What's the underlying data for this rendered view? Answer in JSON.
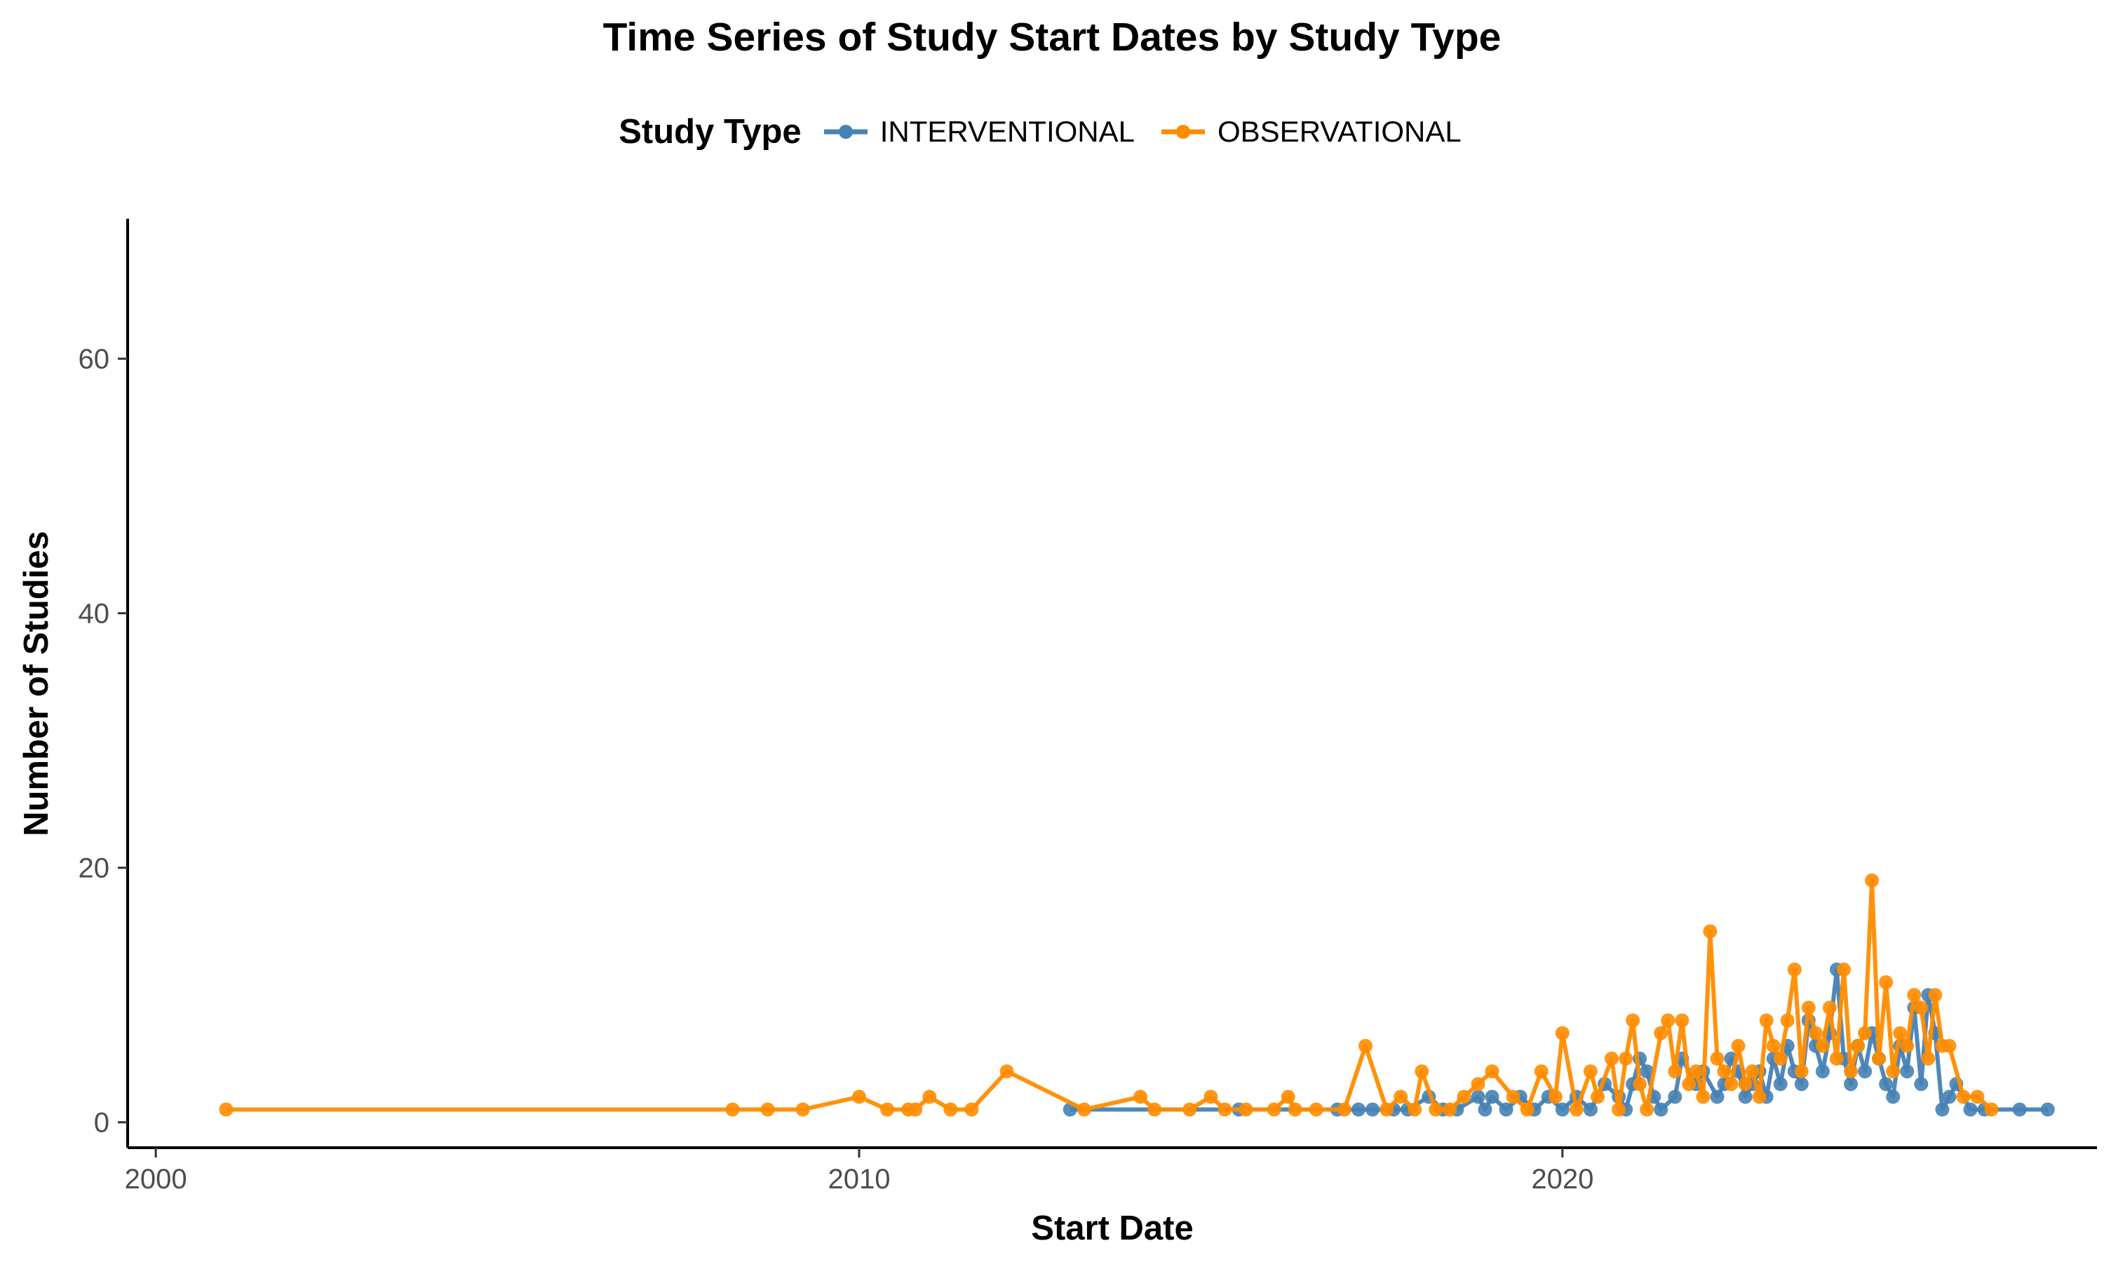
{
  "chart_data": {
    "type": "line",
    "title": "Time Series of Study Start Dates by Study Type",
    "xlabel": "Start Date",
    "ylabel": "Number of Studies",
    "xlim": [
      1999.6,
      2027.6
    ],
    "ylim": [
      -2,
      71
    ],
    "x_ticks": [
      2000,
      2010,
      2020
    ],
    "x_tick_labels": [
      "2000",
      "2010",
      "2020"
    ],
    "y_ticks": [
      0,
      20,
      40,
      60
    ],
    "y_tick_labels": [
      "0",
      "20",
      "40",
      "60"
    ],
    "grid": false,
    "legend": {
      "title": "Study Type",
      "position": "top"
    },
    "series": [
      {
        "name": "INTERVENTIONAL",
        "color": "#4682B4",
        "x": [
          2013.0,
          2015.4,
          2016.8,
          2017.1,
          2017.3,
          2017.6,
          2017.8,
          2018.1,
          2018.3,
          2018.5,
          2018.8,
          2018.9,
          2019.0,
          2019.2,
          2019.4,
          2019.6,
          2019.8,
          2020.0,
          2020.2,
          2020.4,
          2020.6,
          2020.8,
          2020.9,
          2021.0,
          2021.1,
          2021.2,
          2021.3,
          2021.4,
          2021.6,
          2021.7,
          2021.9,
          2022.0,
          2022.2,
          2022.3,
          2022.4,
          2022.5,
          2022.6,
          2022.7,
          2022.8,
          2022.9,
          2023.0,
          2023.1,
          2023.2,
          2023.3,
          2023.4,
          2023.5,
          2023.6,
          2023.7,
          2023.8,
          2023.9,
          2024.0,
          2024.1,
          2024.2,
          2024.3,
          2024.4,
          2024.5,
          2024.6,
          2024.7,
          2024.8,
          2024.9,
          2025.0,
          2025.1,
          2025.2,
          2025.3,
          2025.4,
          2025.5,
          2025.6,
          2025.8,
          2026.0,
          2026.5,
          2026.9
        ],
        "y": [
          1,
          1,
          1,
          1,
          1,
          1,
          1,
          2,
          1,
          1,
          2,
          1,
          2,
          1,
          2,
          1,
          2,
          1,
          2,
          1,
          3,
          2,
          1,
          3,
          5,
          4,
          2,
          1,
          2,
          5,
          3,
          4,
          2,
          3,
          5,
          4,
          2,
          3,
          4,
          2,
          5,
          3,
          6,
          4,
          3,
          8,
          6,
          4,
          7,
          12,
          5,
          3,
          6,
          4,
          7,
          5,
          3,
          2,
          6,
          4,
          9,
          3,
          10,
          7,
          1,
          2,
          3,
          1,
          1,
          1,
          1
        ]
      },
      {
        "name": "OBSERVATIONAL",
        "color": "#FF8C00",
        "x": [
          2001.0,
          2008.2,
          2008.7,
          2009.2,
          2010.0,
          2010.4,
          2010.7,
          2010.8,
          2011.0,
          2011.3,
          2011.6,
          2012.1,
          2013.2,
          2014.0,
          2014.2,
          2014.7,
          2015.0,
          2015.2,
          2015.5,
          2015.9,
          2016.1,
          2016.2,
          2016.5,
          2016.9,
          2017.2,
          2017.5,
          2017.7,
          2017.9,
          2018.0,
          2018.2,
          2018.4,
          2018.6,
          2018.8,
          2019.0,
          2019.3,
          2019.5,
          2019.7,
          2019.9,
          2020.0,
          2020.2,
          2020.4,
          2020.5,
          2020.7,
          2020.8,
          2020.9,
          2021.0,
          2021.1,
          2021.2,
          2021.4,
          2021.5,
          2021.6,
          2021.7,
          2021.8,
          2021.9,
          2022.0,
          2022.1,
          2022.2,
          2022.3,
          2022.4,
          2022.5,
          2022.6,
          2022.7,
          2022.8,
          2022.9,
          2023.0,
          2023.1,
          2023.2,
          2023.3,
          2023.4,
          2023.5,
          2023.6,
          2023.7,
          2023.8,
          2023.9,
          2024.0,
          2024.1,
          2024.2,
          2024.3,
          2024.4,
          2024.5,
          2024.6,
          2024.7,
          2024.8,
          2024.9,
          2025.0,
          2025.1,
          2025.2,
          2025.3,
          2025.4,
          2025.5,
          2025.7,
          2025.9,
          2026.1
        ],
        "y": [
          1,
          1,
          1,
          1,
          2,
          1,
          1,
          1,
          2,
          1,
          1,
          4,
          1,
          2,
          1,
          1,
          2,
          1,
          1,
          1,
          2,
          1,
          1,
          1,
          6,
          1,
          2,
          1,
          4,
          1,
          1,
          2,
          3,
          4,
          2,
          1,
          4,
          2,
          7,
          1,
          4,
          2,
          5,
          1,
          5,
          8,
          3,
          1,
          7,
          8,
          4,
          8,
          3,
          4,
          2,
          15,
          5,
          4,
          3,
          6,
          3,
          4,
          2,
          8,
          6,
          5,
          8,
          12,
          4,
          9,
          7,
          6,
          9,
          5,
          12,
          4,
          6,
          7,
          19,
          5,
          11,
          4,
          7,
          6,
          10,
          9,
          5,
          10,
          6,
          6,
          2,
          2,
          1
        ]
      }
    ]
  }
}
